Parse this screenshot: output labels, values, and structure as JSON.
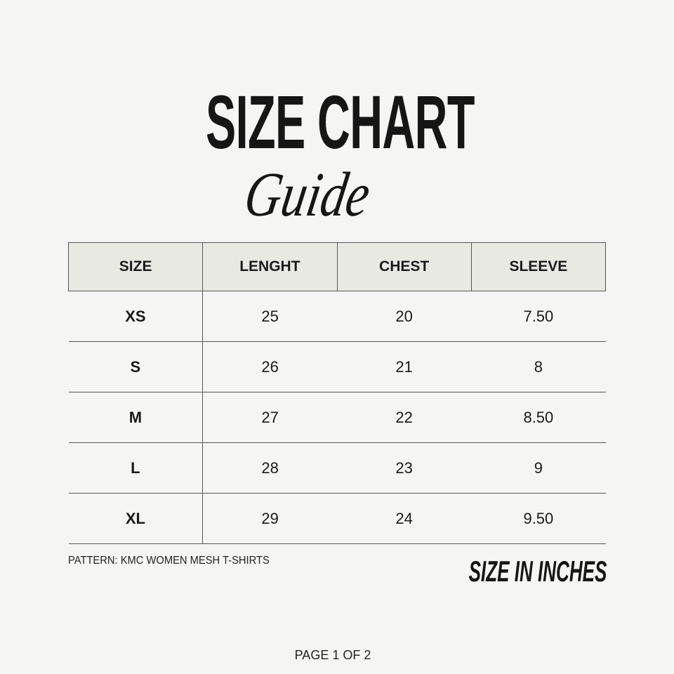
{
  "header": {
    "title": "SIZE CHART",
    "subtitle": "Guide"
  },
  "table": {
    "columns": [
      "SIZE",
      "LENGHT",
      "CHEST",
      "SLEEVE"
    ],
    "rows": [
      [
        "XS",
        "25",
        "20",
        "7.50"
      ],
      [
        "S",
        "26",
        "21",
        "8"
      ],
      [
        "M",
        "27",
        "22",
        "8.50"
      ],
      [
        "L",
        "28",
        "23",
        "9"
      ],
      [
        "XL",
        "29",
        "24",
        "9.50"
      ]
    ]
  },
  "footer": {
    "pattern": "PATTERN: KMC WOMEN MESH T-SHIRTS",
    "units": "SIZE IN INCHES",
    "page": "PAGE 1 OF 2"
  }
}
